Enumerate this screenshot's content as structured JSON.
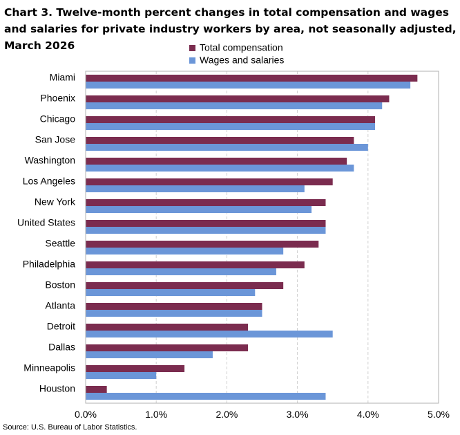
{
  "chart_data": {
    "type": "bar",
    "orientation": "horizontal",
    "title": "Chart 3. Twelve-month percent changes in total compensation and wages and salaries for private industry workers by area, not seasonally adjusted, March 2026",
    "xlabel": "",
    "ylabel": "",
    "xlim": [
      0,
      5
    ],
    "x_ticks": [
      "0.0%",
      "1.0%",
      "2.0%",
      "3.0%",
      "4.0%",
      "5.0%"
    ],
    "grid": "vertical dashed",
    "legend_position": "top",
    "categories": [
      "Miami",
      "Phoenix",
      "Chicago",
      "San Jose",
      "Washington",
      "Los Angeles",
      "New York",
      "United States",
      "Seattle",
      "Philadelphia",
      "Boston",
      "Atlanta",
      "Detroit",
      "Dallas",
      "Minneapolis",
      "Houston"
    ],
    "series": [
      {
        "name": "Total compensation",
        "color": "#7b2c4f",
        "values": [
          4.7,
          4.3,
          4.1,
          3.8,
          3.7,
          3.5,
          3.4,
          3.4,
          3.3,
          3.1,
          2.8,
          2.5,
          2.3,
          2.3,
          1.4,
          0.3
        ]
      },
      {
        "name": "Wages and salaries",
        "color": "#6b96d8",
        "values": [
          4.6,
          4.2,
          4.1,
          4.0,
          3.8,
          3.1,
          3.2,
          3.4,
          2.8,
          2.7,
          2.4,
          2.5,
          3.5,
          1.8,
          1.0,
          3.4
        ]
      }
    ]
  },
  "source": "Source: U.S. Bureau of Labor Statistics."
}
